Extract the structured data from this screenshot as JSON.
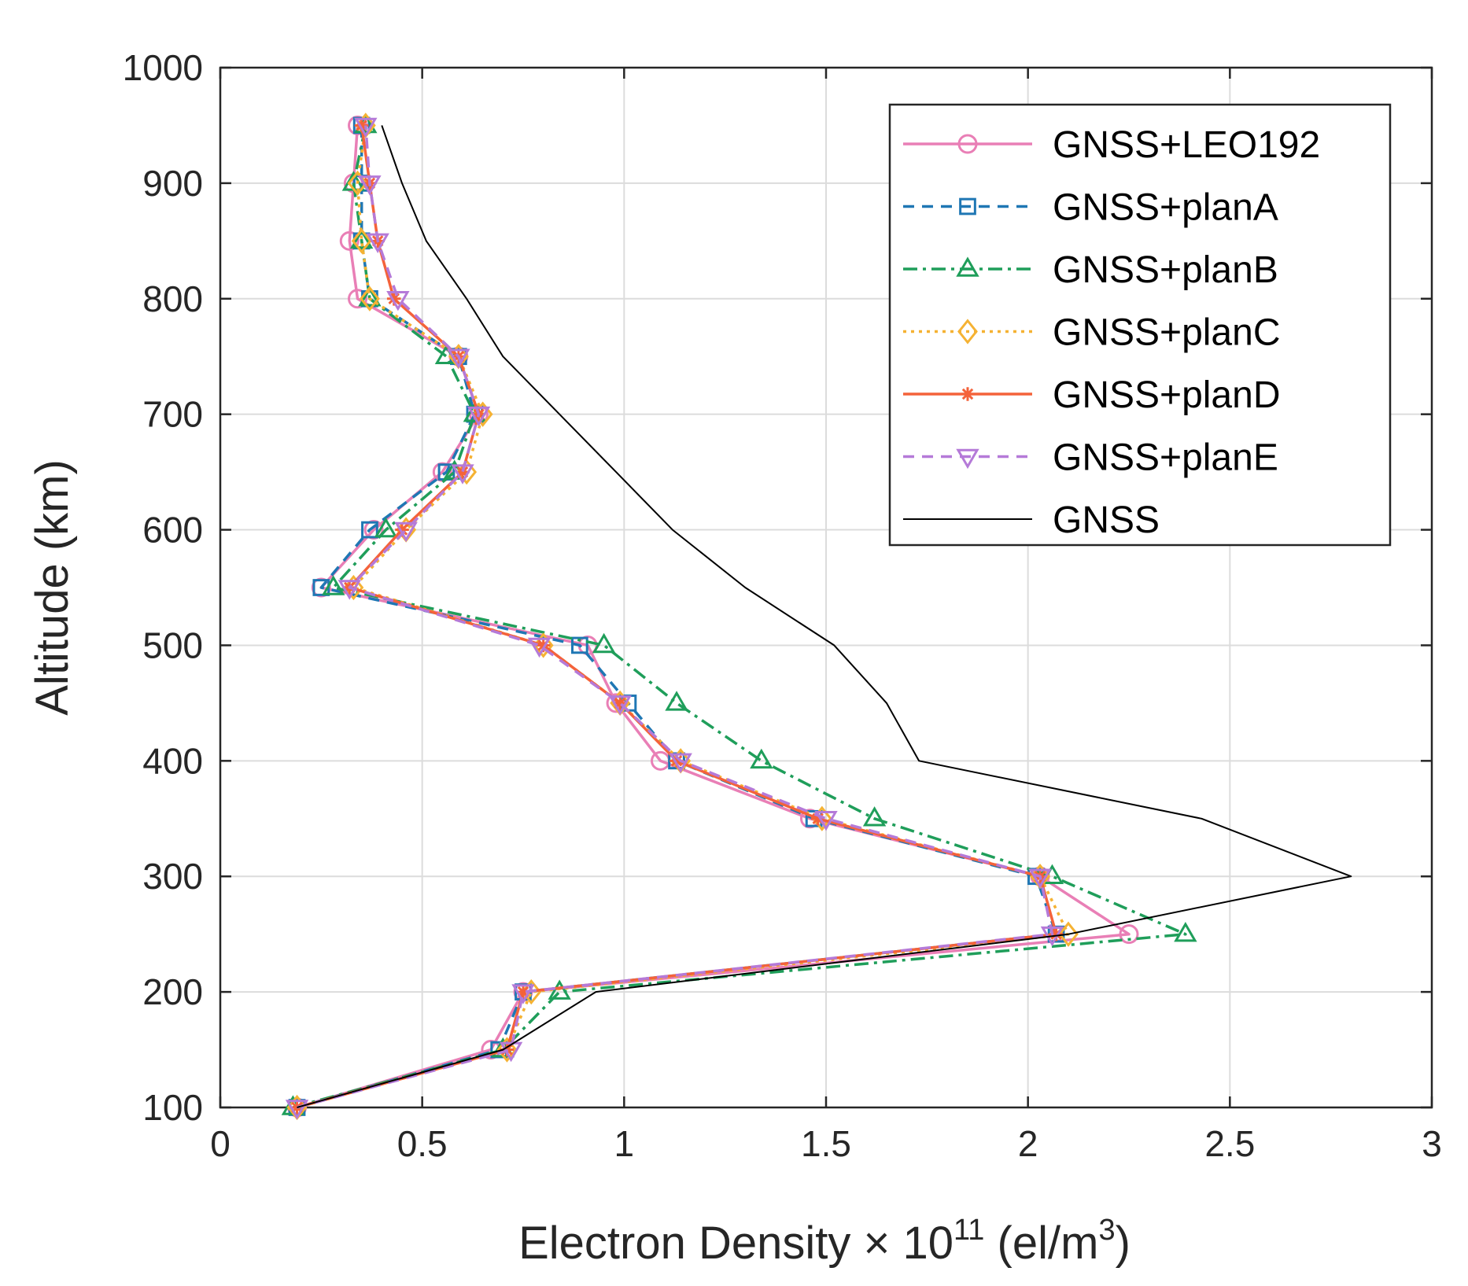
{
  "chart_data": {
    "type": "line",
    "xlabel": {
      "main": "Electron Density × 10",
      "exp": "11",
      "unit_open": " (el/m",
      "unit_exp": "3",
      "unit_close": ")"
    },
    "ylabel": "Altitude (km)",
    "xlim": [
      0,
      3
    ],
    "ylim": [
      100,
      1000
    ],
    "xticks": [
      0,
      0.5,
      1,
      1.5,
      2,
      2.5,
      3
    ],
    "xtick_labels": [
      "0",
      "0.5",
      "1",
      "1.5",
      "2",
      "2.5",
      "3"
    ],
    "yticks": [
      100,
      200,
      300,
      400,
      500,
      600,
      700,
      800,
      900,
      1000
    ],
    "ytick_labels": [
      "100",
      "200",
      "300",
      "400",
      "500",
      "600",
      "700",
      "800",
      "900",
      "1000"
    ],
    "grid": true,
    "legend_position": "top-right",
    "series": [
      {
        "name": "GNSS+LEO192",
        "color": "#e97fb6",
        "dash": "",
        "marker": "circle",
        "x": [
          0.19,
          0.67,
          0.75,
          2.25,
          2.03,
          1.46,
          1.09,
          0.98,
          0.91,
          0.25,
          0.38,
          0.55,
          0.64,
          0.59,
          0.34,
          0.32,
          0.33,
          0.34
        ],
        "y": [
          100,
          150,
          200,
          250,
          300,
          350,
          400,
          450,
          500,
          550,
          600,
          650,
          700,
          750,
          800,
          850,
          900,
          950
        ]
      },
      {
        "name": "GNSS+planA",
        "color": "#1f77b4",
        "dash": "14,10",
        "marker": "square",
        "x": [
          0.19,
          0.69,
          0.75,
          2.07,
          2.02,
          1.47,
          1.13,
          1.01,
          0.89,
          0.25,
          0.37,
          0.56,
          0.63,
          0.59,
          0.37,
          0.35,
          0.35,
          0.35
        ],
        "y": [
          100,
          150,
          200,
          250,
          300,
          350,
          400,
          450,
          500,
          550,
          600,
          650,
          700,
          750,
          800,
          850,
          900,
          950
        ]
      },
      {
        "name": "GNSS+planB",
        "color": "#1f9e5a",
        "dash": "18,7,4,7",
        "marker": "triangle-up",
        "x": [
          0.18,
          0.7,
          0.84,
          2.39,
          2.06,
          1.62,
          1.34,
          1.13,
          0.95,
          0.28,
          0.41,
          0.58,
          0.63,
          0.56,
          0.37,
          0.35,
          0.33,
          0.36
        ],
        "y": [
          100,
          150,
          200,
          250,
          300,
          350,
          400,
          450,
          500,
          550,
          600,
          650,
          700,
          750,
          800,
          850,
          900,
          950
        ]
      },
      {
        "name": "GNSS+planC",
        "color": "#f5b233",
        "dash": "4,6",
        "marker": "diamond",
        "x": [
          0.19,
          0.71,
          0.77,
          2.1,
          2.03,
          1.49,
          1.14,
          0.99,
          0.8,
          0.33,
          0.46,
          0.61,
          0.65,
          0.59,
          0.37,
          0.35,
          0.34,
          0.36
        ],
        "y": [
          100,
          150,
          200,
          250,
          300,
          350,
          400,
          450,
          500,
          550,
          600,
          650,
          700,
          750,
          800,
          850,
          900,
          950
        ]
      },
      {
        "name": "GNSS+planD",
        "color": "#f4623a",
        "dash": "",
        "marker": "asterisk",
        "x": [
          0.19,
          0.71,
          0.75,
          2.07,
          2.03,
          1.48,
          1.13,
          0.99,
          0.8,
          0.32,
          0.45,
          0.6,
          0.64,
          0.59,
          0.43,
          0.39,
          0.37,
          0.35
        ],
        "y": [
          100,
          150,
          200,
          250,
          300,
          350,
          400,
          450,
          500,
          550,
          600,
          650,
          700,
          750,
          800,
          850,
          900,
          950
        ]
      },
      {
        "name": "GNSS+planE",
        "color": "#b57ad8",
        "dash": "14,10",
        "marker": "triangle-down",
        "x": [
          0.19,
          0.72,
          0.75,
          2.06,
          2.03,
          1.5,
          1.14,
          0.99,
          0.79,
          0.32,
          0.46,
          0.6,
          0.64,
          0.59,
          0.44,
          0.39,
          0.37,
          0.36
        ],
        "y": [
          100,
          150,
          200,
          250,
          300,
          350,
          400,
          450,
          500,
          550,
          600,
          650,
          700,
          750,
          800,
          850,
          900,
          950
        ]
      },
      {
        "name": "GNSS",
        "color": "#000000",
        "dash": "",
        "marker": "none",
        "x": [
          0.19,
          0.7,
          0.93,
          2.1,
          2.8,
          2.43,
          1.73,
          1.65,
          1.52,
          1.3,
          1.12,
          0.98,
          0.84,
          0.7,
          0.61,
          0.51,
          0.45,
          0.4
        ],
        "y": [
          100,
          150,
          200,
          250,
          300,
          350,
          400,
          450,
          500,
          550,
          600,
          650,
          700,
          750,
          800,
          850,
          900,
          950
        ]
      }
    ]
  }
}
